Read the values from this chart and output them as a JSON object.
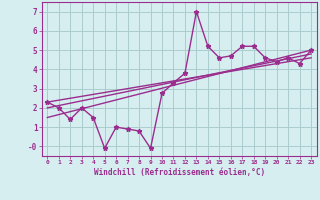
{
  "x": [
    0,
    1,
    2,
    3,
    4,
    5,
    6,
    7,
    8,
    9,
    10,
    11,
    12,
    13,
    14,
    15,
    16,
    17,
    18,
    19,
    20,
    21,
    22,
    23
  ],
  "y_main": [
    2.3,
    2.0,
    1.4,
    2.0,
    1.5,
    -0.1,
    1.0,
    0.9,
    0.8,
    -0.1,
    2.75,
    3.3,
    3.8,
    7.0,
    5.2,
    4.6,
    4.7,
    5.2,
    5.2,
    4.6,
    4.4,
    4.6,
    4.3,
    5.0
  ],
  "trend_lines": [
    {
      "x_start": 0,
      "y_start": 2.3,
      "x_end": 23,
      "y_end": 4.6
    },
    {
      "x_start": 0,
      "y_start": 2.0,
      "x_end": 23,
      "y_end": 4.8
    },
    {
      "x_start": 0,
      "y_start": 1.5,
      "x_end": 23,
      "y_end": 5.0
    }
  ],
  "color": "#9B2D8E",
  "bg_color": "#D6EEF0",
  "grid_color": "#AACCCC",
  "xlabel": "Windchill (Refroidissement éolien,°C)",
  "ylim": [
    -0.5,
    7.5
  ],
  "xlim": [
    -0.5,
    23.5
  ],
  "ytick_vals": [
    0,
    1,
    2,
    3,
    4,
    5,
    6,
    7
  ],
  "ytick_labels": [
    "-0",
    "1",
    "2",
    "3",
    "4",
    "5",
    "6",
    "7"
  ],
  "xticks": [
    0,
    1,
    2,
    3,
    4,
    5,
    6,
    7,
    8,
    9,
    10,
    11,
    12,
    13,
    14,
    15,
    16,
    17,
    18,
    19,
    20,
    21,
    22,
    23
  ],
  "marker": "*",
  "linewidth": 1.0,
  "markersize": 3.5
}
